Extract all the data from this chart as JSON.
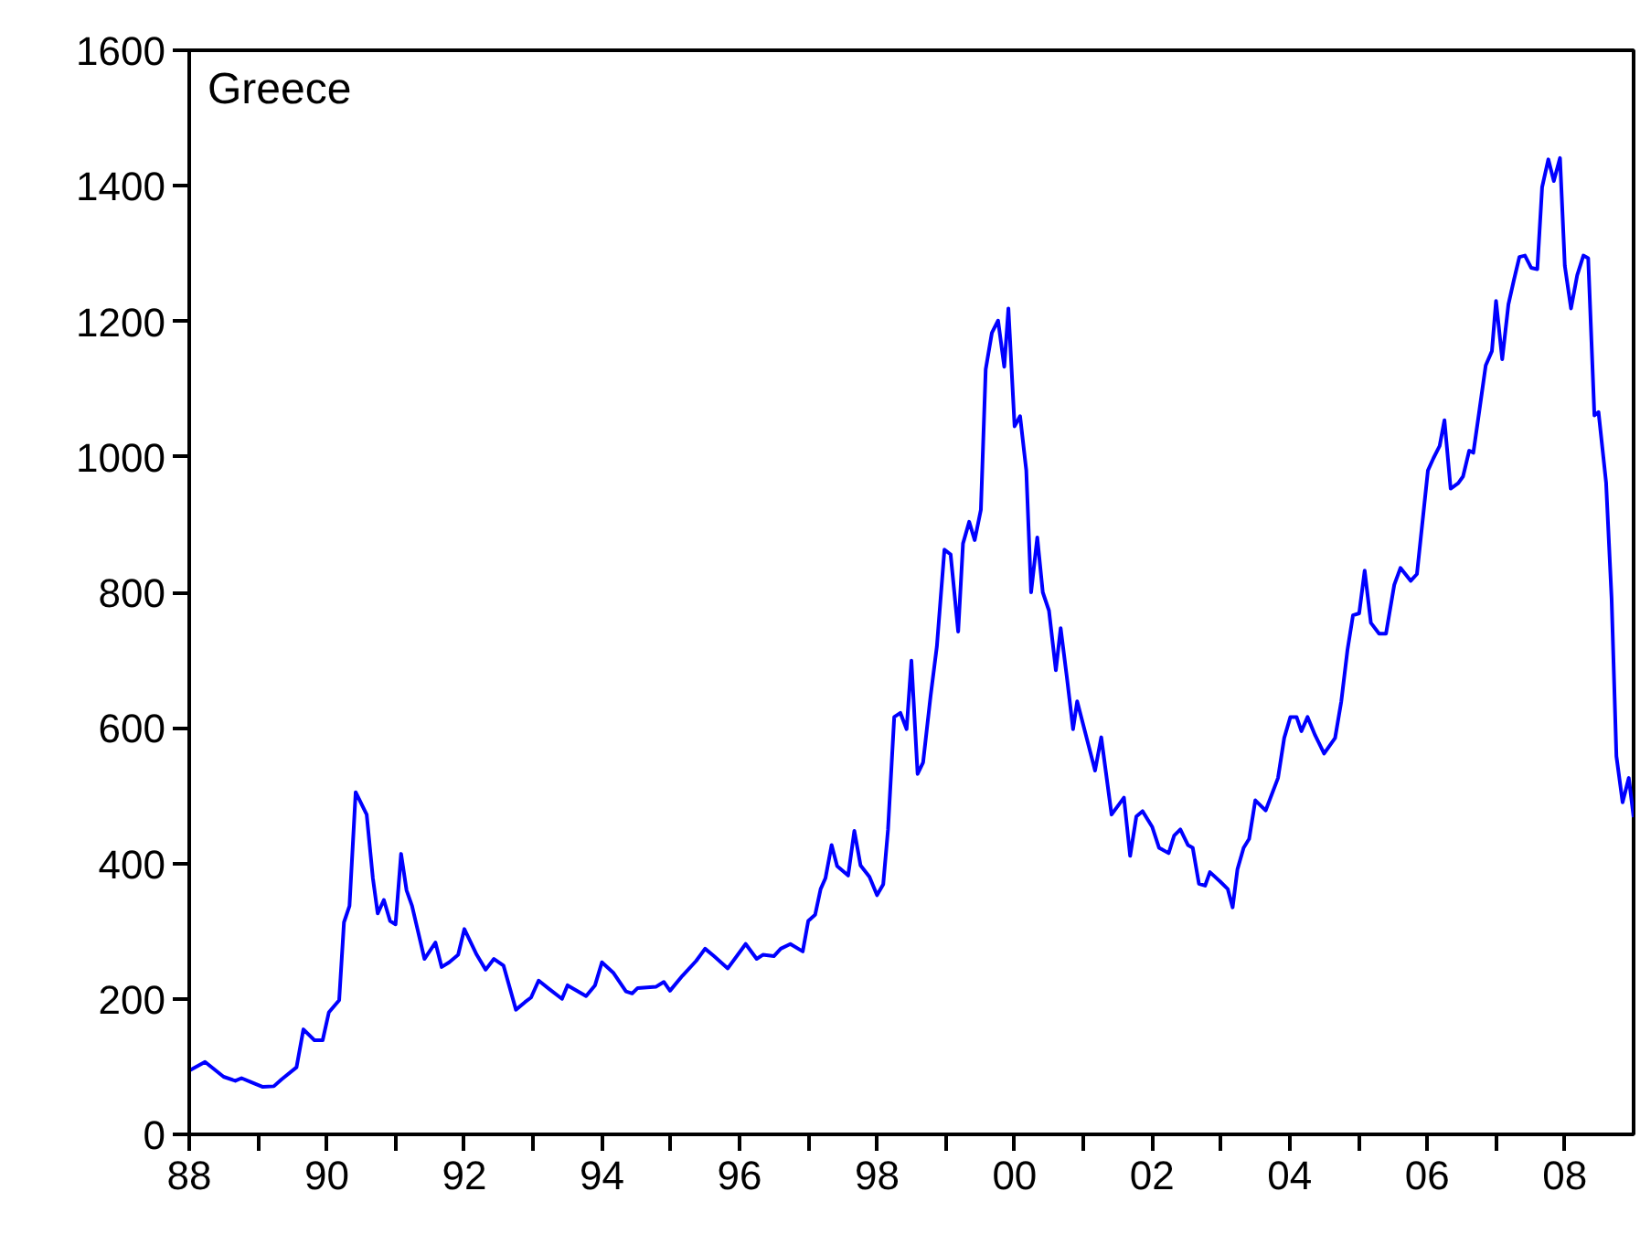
{
  "chart_data": {
    "type": "line",
    "title": "Greece",
    "x": [
      1988.0,
      1988.23,
      1988.5,
      1988.67,
      1988.76,
      1988.9,
      1989.07,
      1989.23,
      1989.34,
      1989.56,
      1989.66,
      1989.82,
      1989.94,
      1990.03,
      1990.18,
      1990.25,
      1990.33,
      1990.42,
      1990.58,
      1990.67,
      1990.74,
      1990.83,
      1990.92,
      1991.0,
      1991.08,
      1991.16,
      1991.24,
      1991.42,
      1991.58,
      1991.67,
      1991.78,
      1991.91,
      1992.0,
      1992.18,
      1992.31,
      1992.43,
      1992.57,
      1992.75,
      1992.88,
      1992.97,
      1993.08,
      1993.24,
      1993.42,
      1993.5,
      1993.77,
      1993.9,
      1994.0,
      1994.17,
      1994.35,
      1994.44,
      1994.52,
      1994.79,
      1994.9,
      1994.99,
      1995.17,
      1995.37,
      1995.5,
      1995.63,
      1995.83,
      1996.09,
      1996.25,
      1996.34,
      1996.5,
      1996.6,
      1996.74,
      1996.92,
      1997.0,
      1997.1,
      1997.18,
      1997.25,
      1997.34,
      1997.42,
      1997.58,
      1997.67,
      1997.76,
      1997.89,
      1998.0,
      1998.09,
      1998.16,
      1998.25,
      1998.34,
      1998.43,
      1998.5,
      1998.59,
      1998.67,
      1998.78,
      1998.87,
      1998.98,
      1999.07,
      1999.18,
      1999.25,
      1999.34,
      1999.42,
      1999.51,
      1999.58,
      1999.67,
      1999.76,
      1999.85,
      1999.91,
      2000.0,
      2000.08,
      2000.17,
      2000.24,
      2000.33,
      2000.41,
      2000.5,
      2000.6,
      2000.67,
      2000.76,
      2000.85,
      2000.91,
      2001.17,
      2001.26,
      2001.41,
      2001.59,
      2001.68,
      2001.77,
      2001.86,
      2002.0,
      2002.1,
      2002.24,
      2002.32,
      2002.41,
      2002.52,
      2002.59,
      2002.68,
      2002.77,
      2002.84,
      2002.99,
      2003.1,
      2003.17,
      2003.24,
      2003.33,
      2003.41,
      2003.5,
      2003.65,
      2003.83,
      2003.92,
      2004.01,
      2004.1,
      2004.17,
      2004.26,
      2004.37,
      2004.5,
      2004.66,
      2004.75,
      2004.84,
      2004.92,
      2005.01,
      2005.09,
      2005.18,
      2005.3,
      2005.4,
      2005.52,
      2005.61,
      2005.76,
      2005.85,
      2006.01,
      2006.09,
      2006.18,
      2006.25,
      2006.34,
      2006.45,
      2006.52,
      2006.61,
      2006.67,
      2006.76,
      2006.85,
      2006.94,
      2007.0,
      2007.09,
      2007.18,
      2007.26,
      2007.34,
      2007.42,
      2007.51,
      2007.6,
      2007.67,
      2007.76,
      2007.84,
      2007.93,
      2008.0,
      2008.09,
      2008.18,
      2008.27,
      2008.34,
      2008.43,
      2008.49,
      2008.6,
      2008.68,
      2008.75,
      2008.84,
      2008.93,
      2009.0
    ],
    "series": [
      {
        "color": "#0000ff",
        "values": [
          94,
          107,
          85,
          79,
          83,
          77,
          70,
          71,
          81,
          99,
          155,
          139,
          139,
          180,
          198,
          313,
          337,
          505,
          472,
          378,
          326,
          346,
          315,
          310,
          414,
          360,
          337,
          259,
          283,
          247,
          254,
          265,
          303,
          265,
          243,
          259,
          249,
          184,
          195,
          202,
          227,
          214,
          200,
          220,
          204,
          220,
          254,
          238,
          211,
          208,
          216,
          218,
          225,
          212,
          234,
          256,
          274,
          263,
          245,
          281,
          259,
          265,
          263,
          274,
          281,
          270,
          315,
          324,
          362,
          378,
          427,
          396,
          382,
          448,
          397,
          380,
          353,
          369,
          450,
          616,
          622,
          598,
          699,
          532,
          549,
          648,
          720,
          863,
          856,
          742,
          872,
          904,
          877,
          922,
          1129,
          1183,
          1201,
          1133,
          1219,
          1045,
          1060,
          980,
          800,
          881,
          800,
          773,
          685,
          747,
          675,
          598,
          639,
          537,
          586,
          472,
          497,
          411,
          469,
          477,
          454,
          423,
          415,
          441,
          450,
          427,
          423,
          370,
          367,
          387,
          373,
          362,
          335,
          391,
          423,
          436,
          493,
          478,
          526,
          585,
          616,
          616,
          595,
          616,
          589,
          562,
          585,
          639,
          715,
          766,
          769,
          832,
          755,
          739,
          739,
          811,
          836,
          817,
          827,
          980,
          998,
          1016,
          1054,
          953,
          961,
          971,
          1009,
          1006,
          1070,
          1135,
          1156,
          1230,
          1144,
          1225,
          1261,
          1295,
          1297,
          1279,
          1277,
          1398,
          1439,
          1407,
          1441,
          1282,
          1219,
          1268,
          1297,
          1293,
          1061,
          1066,
          962,
          791,
          558,
          490,
          526,
          468
        ]
      }
    ],
    "xlim": [
      1988,
      2009
    ],
    "xticks": [
      {
        "value": 1988,
        "label": "88"
      },
      {
        "value": 1989,
        "label": null
      },
      {
        "value": 1990,
        "label": "90"
      },
      {
        "value": 1991,
        "label": null
      },
      {
        "value": 1992,
        "label": "92"
      },
      {
        "value": 1993,
        "label": null
      },
      {
        "value": 1994,
        "label": "94"
      },
      {
        "value": 1995,
        "label": null
      },
      {
        "value": 1996,
        "label": "96"
      },
      {
        "value": 1997,
        "label": null
      },
      {
        "value": 1998,
        "label": "98"
      },
      {
        "value": 1999,
        "label": null
      },
      {
        "value": 2000,
        "label": "00"
      },
      {
        "value": 2001,
        "label": null
      },
      {
        "value": 2002,
        "label": "02"
      },
      {
        "value": 2003,
        "label": null
      },
      {
        "value": 2004,
        "label": "04"
      },
      {
        "value": 2005,
        "label": null
      },
      {
        "value": 2006,
        "label": "06"
      },
      {
        "value": 2007,
        "label": null
      },
      {
        "value": 2008,
        "label": "08"
      }
    ],
    "ylim": [
      0,
      1600
    ],
    "yticks": [
      0,
      200,
      400,
      600,
      800,
      1000,
      1200,
      1400,
      1600
    ],
    "grid": false,
    "marker": "none",
    "line_style": "solid"
  }
}
